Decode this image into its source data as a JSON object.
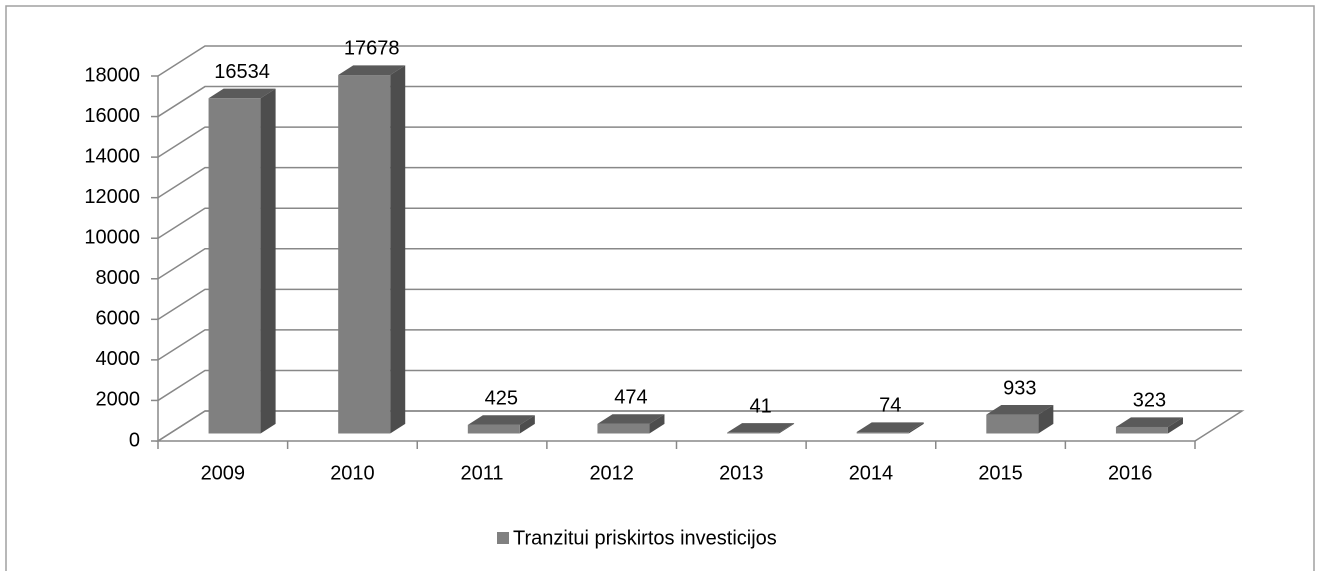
{
  "chart_data": {
    "type": "bar3d",
    "categories": [
      "2009",
      "2010",
      "2011",
      "2012",
      "2013",
      "2014",
      "2015",
      "2016"
    ],
    "series": [
      {
        "name": "Tranzitui priskirtos investicijos",
        "color": "#808080",
        "values": [
          16534,
          17678,
          425,
          474,
          41,
          74,
          933,
          323
        ]
      }
    ],
    "ylim": [
      0,
      18000
    ],
    "yticks": [
      0,
      2000,
      4000,
      6000,
      8000,
      10000,
      12000,
      14000,
      16000,
      18000
    ],
    "grid": true,
    "legend": "bottom"
  }
}
